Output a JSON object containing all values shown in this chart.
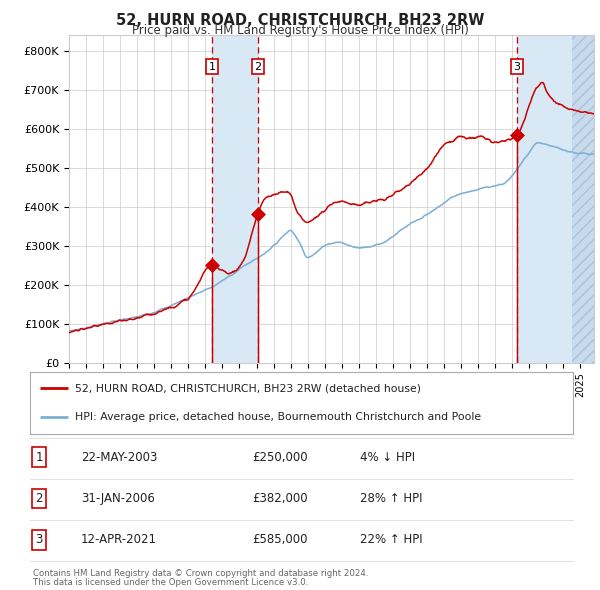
{
  "title": "52, HURN ROAD, CHRISTCHURCH, BH23 2RW",
  "subtitle": "Price paid vs. HM Land Registry's House Price Index (HPI)",
  "ylabel_ticks": [
    "£0",
    "£100K",
    "£200K",
    "£300K",
    "£400K",
    "£500K",
    "£600K",
    "£700K",
    "£800K"
  ],
  "ytick_values": [
    0,
    100000,
    200000,
    300000,
    400000,
    500000,
    600000,
    700000,
    800000
  ],
  "ylim": [
    0,
    840000
  ],
  "xlim_start": 1995.0,
  "xlim_end": 2025.8,
  "sale_dates": [
    2003.38,
    2006.08,
    2021.28
  ],
  "sale_prices": [
    250000,
    382000,
    585000
  ],
  "sale_labels": [
    "1",
    "2",
    "3"
  ],
  "legend_line1": "52, HURN ROAD, CHRISTCHURCH, BH23 2RW (detached house)",
  "legend_line2": "HPI: Average price, detached house, Bournemouth Christchurch and Poole",
  "table_entries": [
    {
      "label": "1",
      "date": "22-MAY-2003",
      "price": "£250,000",
      "pct": "4%",
      "dir": "↓",
      "ref": "HPI"
    },
    {
      "label": "2",
      "date": "31-JAN-2006",
      "price": "£382,000",
      "pct": "28%",
      "dir": "↑",
      "ref": "HPI"
    },
    {
      "label": "3",
      "date": "12-APR-2021",
      "price": "£585,000",
      "pct": "22%",
      "dir": "↑",
      "ref": "HPI"
    }
  ],
  "footnote1": "Contains HM Land Registry data © Crown copyright and database right 2024.",
  "footnote2": "This data is licensed under the Open Government Licence v3.0.",
  "line_color_red": "#cc0000",
  "line_color_blue": "#7aafd4",
  "shading_color": "#d8e8f5",
  "grid_color": "#cccccc",
  "bg_color": "#ffffff"
}
